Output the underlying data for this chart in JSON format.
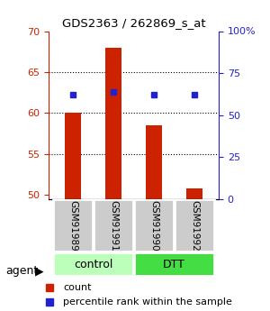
{
  "title": "GDS2363 / 262869_s_at",
  "samples": [
    "GSM91989",
    "GSM91991",
    "GSM91990",
    "GSM91992"
  ],
  "count_values": [
    60.0,
    68.0,
    58.5,
    50.8
  ],
  "percentile_values": [
    62.2,
    63.5,
    62.2,
    62.2
  ],
  "ylim_left": [
    49.5,
    70
  ],
  "ylim_right": [
    0,
    100
  ],
  "yticks_left": [
    50,
    55,
    60,
    65,
    70
  ],
  "yticks_right": [
    0,
    25,
    50,
    75,
    100
  ],
  "ytick_labels_right": [
    "0",
    "25",
    "50",
    "75",
    "100%"
  ],
  "bar_color": "#cc2200",
  "dot_color": "#2222cc",
  "group_colors": {
    "control": "#bbffbb",
    "DTT": "#44dd44"
  },
  "bar_width": 0.4,
  "sample_box_color": "#cccccc",
  "left_tick_color": "#cc2200",
  "right_tick_color": "#2222cc",
  "agent_label": "agent",
  "legend_count_label": "count",
  "legend_percentile_label": "percentile rank within the sample",
  "group_spans": [
    [
      "control",
      0,
      1
    ],
    [
      "DTT",
      2,
      3
    ]
  ]
}
